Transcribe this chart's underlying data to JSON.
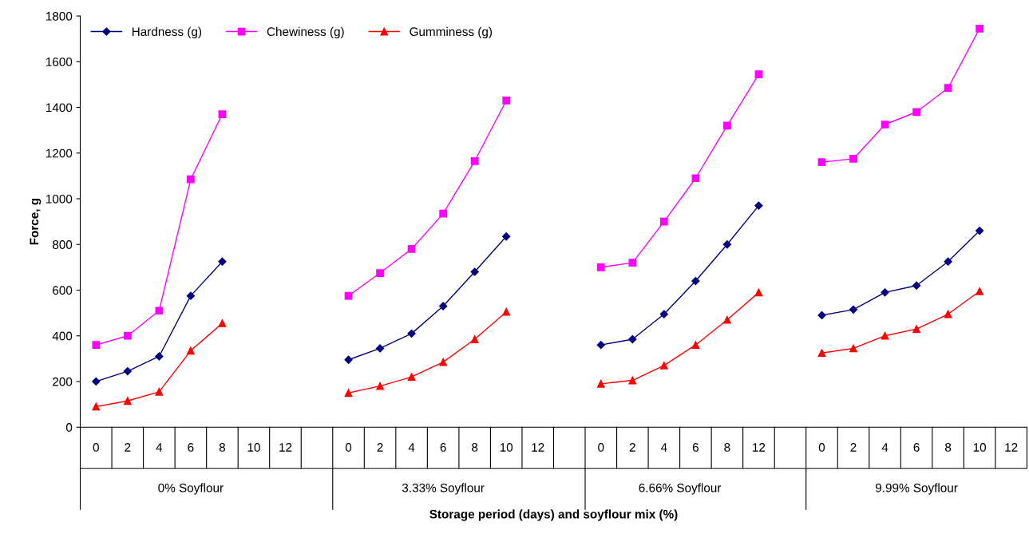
{
  "chart_data": {
    "type": "line",
    "xlabel": "Storage period (days) and soyflour mix (%)",
    "ylabel": "Force, g",
    "categories": [
      "0",
      "2",
      "4",
      "6",
      "8",
      "10",
      "12",
      null,
      "0",
      "2",
      "4",
      "6",
      "8",
      "10",
      "12",
      null,
      "0",
      "2",
      "4",
      "6",
      "8",
      "12",
      null,
      "0",
      "2",
      "4",
      "6",
      "8",
      "10",
      "12"
    ],
    "series": [
      {
        "name": "Hardness (g)",
        "color": "#000080",
        "marker": "diamond",
        "values": [
          200,
          245,
          310,
          575,
          725,
          null,
          null,
          null,
          295,
          345,
          410,
          530,
          680,
          835,
          null,
          null,
          360,
          385,
          495,
          640,
          800,
          970,
          null,
          490,
          515,
          590,
          620,
          725,
          860,
          null
        ]
      },
      {
        "name": "Chewiness (g)",
        "color": "#ff00ff",
        "marker": "square",
        "values": [
          360,
          400,
          510,
          1085,
          1370,
          null,
          null,
          null,
          575,
          675,
          780,
          935,
          1165,
          1430,
          null,
          null,
          700,
          720,
          900,
          1090,
          1320,
          1545,
          null,
          1160,
          1175,
          1325,
          1380,
          1485,
          1745,
          null
        ]
      },
      {
        "name": "Gumminess (g)",
        "color": "#ff0000",
        "marker": "triangle",
        "values": [
          90,
          115,
          155,
          335,
          455,
          null,
          null,
          null,
          150,
          180,
          220,
          285,
          385,
          505,
          null,
          null,
          190,
          205,
          270,
          360,
          470,
          590,
          null,
          325,
          345,
          400,
          430,
          495,
          595,
          null
        ]
      }
    ],
    "annotations": [
      "0% Soyflour",
      "3.33% Soyflour",
      "6.66% Soyflour",
      "9.99% Soyflour"
    ],
    "ylim": [
      0,
      1800
    ],
    "yticks": [
      0,
      200,
      400,
      600,
      800,
      1000,
      1200,
      1400,
      1600,
      1800
    ],
    "grid": false,
    "legend": "top left"
  }
}
